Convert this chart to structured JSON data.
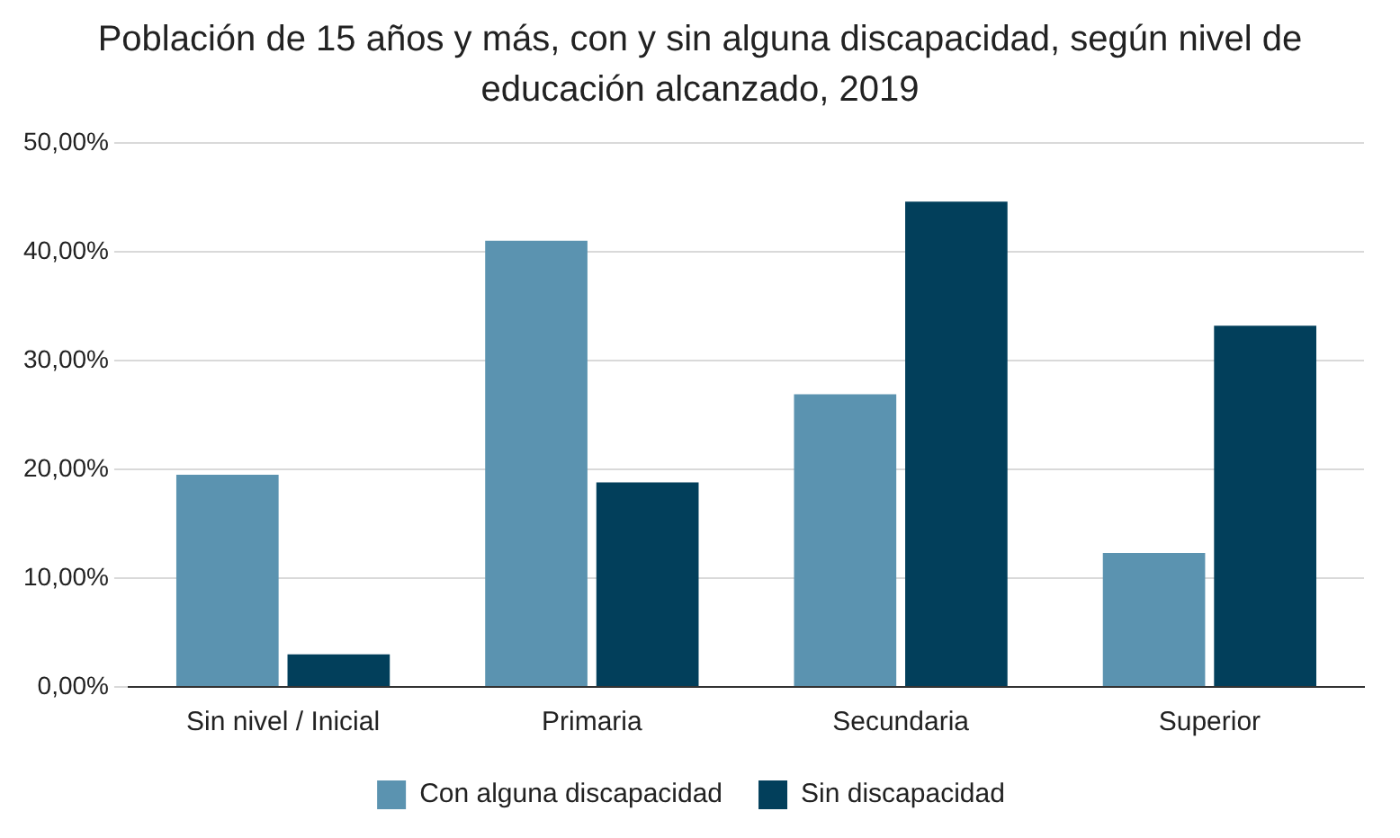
{
  "chart_data": {
    "type": "bar",
    "title": "Población de 15 años y más, con y sin alguna discapacidad, según nivel de educación alcanzado, 2019",
    "categories": [
      "Sin nivel / Inicial",
      "Primaria",
      "Secundaria",
      "Superior"
    ],
    "series": [
      {
        "name": "Con alguna discapacidad",
        "color": "#5b93b0",
        "values": [
          19.5,
          41.0,
          26.9,
          12.3
        ]
      },
      {
        "name": "Sin discapacidad",
        "color": "#023f5b",
        "values": [
          3.0,
          18.8,
          44.6,
          33.2
        ]
      }
    ],
    "ylim": [
      0,
      50
    ],
    "yticks": [
      {
        "value": 0,
        "label": "0,00%"
      },
      {
        "value": 10,
        "label": "10,00%"
      },
      {
        "value": 20,
        "label": "20,00%"
      },
      {
        "value": 30,
        "label": "30,00%"
      },
      {
        "value": 40,
        "label": "40,00%"
      },
      {
        "value": 50,
        "label": "50,00%"
      }
    ],
    "grid": "y",
    "legend": "bottom"
  }
}
